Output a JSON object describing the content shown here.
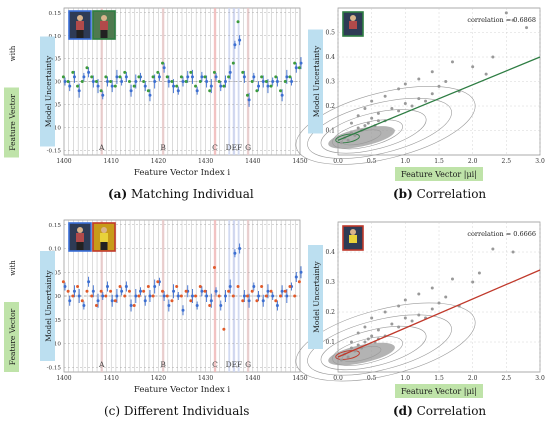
{
  "panels": [
    {
      "id": "a",
      "kind": "scatter_errorbar",
      "caption_letter": "(a)",
      "caption_text": "Matching Individual",
      "ylabel_green": "Feature Vector",
      "ylabel_green_with": "with",
      "ylabel_blue": "Model Uncertainty",
      "xlabel": "Feature Vector Index i",
      "chart_data": {
        "type": "scatter",
        "xlim": [
          1400,
          1450
        ],
        "ylim": [
          -0.16,
          0.16
        ],
        "x_ticks": [
          1400,
          1410,
          1420,
          1430,
          1440,
          1450
        ],
        "y_ticks": [
          -0.15,
          -0.1,
          -0.05,
          0.0,
          0.05,
          0.1,
          0.15
        ],
        "markers": [
          {
            "label": "A",
            "x": 1408
          },
          {
            "label": "B",
            "x": 1421
          },
          {
            "label": "C",
            "x": 1432
          },
          {
            "label": "DEF",
            "x": 1436
          },
          {
            "label": "G",
            "x": 1439
          }
        ],
        "series": [
          {
            "name": "feature",
            "color": "#3c9a3c",
            "x": [
              1400,
              1401,
              1402,
              1403,
              1404,
              1405,
              1406,
              1407,
              1408,
              1409,
              1410,
              1411,
              1412,
              1413,
              1414,
              1415,
              1416,
              1417,
              1418,
              1419,
              1420,
              1421,
              1422,
              1423,
              1424,
              1425,
              1426,
              1427,
              1428,
              1429,
              1430,
              1431,
              1432,
              1433,
              1434,
              1435,
              1436,
              1437,
              1438,
              1439,
              1440,
              1441,
              1442,
              1443,
              1444,
              1445,
              1446,
              1447,
              1448,
              1449,
              1450
            ],
            "y": [
              0.01,
              0.0,
              0.02,
              -0.01,
              0.0,
              0.03,
              0.01,
              0.0,
              -0.02,
              0.01,
              0.0,
              -0.01,
              0.01,
              0.02,
              0.0,
              -0.01,
              0.01,
              0.0,
              -0.02,
              0.01,
              0.02,
              0.04,
              0.01,
              0.0,
              -0.01,
              0.01,
              0.0,
              0.02,
              -0.01,
              0.0,
              0.01,
              -0.02,
              0.02,
              0.0,
              -0.01,
              0.01,
              0.04,
              0.13,
              0.02,
              -0.03,
              0.0,
              -0.02,
              0.01,
              0.0,
              -0.01,
              0.01,
              -0.02,
              0.0,
              0.01,
              0.04,
              0.03
            ]
          },
          {
            "name": "uncertainty",
            "color": "#3d6fd1",
            "x": [
              1400,
              1401,
              1402,
              1403,
              1404,
              1405,
              1406,
              1407,
              1408,
              1409,
              1410,
              1411,
              1412,
              1413,
              1414,
              1415,
              1416,
              1417,
              1418,
              1419,
              1420,
              1421,
              1422,
              1423,
              1424,
              1425,
              1426,
              1427,
              1428,
              1429,
              1430,
              1431,
              1432,
              1433,
              1434,
              1435,
              1436,
              1437,
              1438,
              1439,
              1440,
              1441,
              1442,
              1443,
              1444,
              1445,
              1446,
              1447,
              1448,
              1449,
              1450
            ],
            "y": [
              0.0,
              -0.01,
              0.01,
              -0.02,
              0.01,
              0.02,
              0.0,
              -0.01,
              -0.03,
              0.0,
              -0.01,
              0.01,
              0.0,
              0.01,
              -0.02,
              0.0,
              0.01,
              -0.01,
              -0.03,
              0.0,
              0.01,
              0.03,
              0.0,
              -0.01,
              -0.02,
              0.0,
              0.01,
              0.01,
              -0.02,
              0.01,
              0.0,
              -0.01,
              0.01,
              -0.01,
              0.0,
              0.02,
              0.08,
              0.09,
              0.01,
              -0.04,
              0.01,
              -0.01,
              0.0,
              -0.01,
              0.0,
              0.0,
              -0.03,
              0.01,
              0.0,
              0.03,
              0.04
            ]
          }
        ]
      }
    },
    {
      "id": "b",
      "kind": "scatter_corr",
      "caption_letter": "(b)",
      "caption_text": "Correlation",
      "annotation": "correlation = 0.6868",
      "ylabel": "Model Uncertainty",
      "xlabel": "Feature Vector |μi|",
      "line_color": "#2e7d43",
      "chart_data": {
        "type": "scatter",
        "xlim": [
          0.0,
          3.0
        ],
        "ylim": [
          0.0,
          0.6
        ],
        "x_ticks": [
          0.0,
          0.5,
          1.0,
          1.5,
          2.0,
          2.5,
          3.0
        ],
        "y_ticks": [
          0.1,
          0.2,
          0.3,
          0.4,
          0.5
        ],
        "fit_line": {
          "x": [
            0.0,
            3.0
          ],
          "y": [
            0.06,
            0.4
          ]
        },
        "points": {
          "x": [
            0.05,
            0.1,
            0.15,
            0.2,
            0.25,
            0.3,
            0.35,
            0.4,
            0.45,
            0.5,
            0.55,
            0.6,
            0.7,
            0.8,
            0.9,
            1.0,
            1.1,
            1.2,
            1.3,
            1.4,
            1.5,
            1.6,
            1.8,
            2.0,
            2.2,
            2.5,
            2.6,
            2.8,
            0.3,
            0.5,
            0.7,
            0.9,
            1.2,
            0.4,
            0.6,
            0.2,
            1.0,
            1.4,
            1.7,
            2.3
          ],
          "y": [
            0.05,
            0.07,
            0.06,
            0.09,
            0.08,
            0.11,
            0.1,
            0.12,
            0.13,
            0.15,
            0.12,
            0.17,
            0.14,
            0.19,
            0.18,
            0.21,
            0.2,
            0.23,
            0.22,
            0.25,
            0.28,
            0.3,
            0.26,
            0.36,
            0.33,
            0.58,
            0.55,
            0.52,
            0.16,
            0.22,
            0.24,
            0.27,
            0.31,
            0.19,
            0.14,
            0.13,
            0.29,
            0.34,
            0.38,
            0.4
          ]
        }
      }
    },
    {
      "id": "c",
      "kind": "scatter_errorbar",
      "caption_letter": "(c)",
      "caption_text": "Different Individuals",
      "ylabel_green": "Feature Vector",
      "ylabel_green_with": "with",
      "ylabel_blue": "Model Uncertainty",
      "xlabel": "Feature Vector Index i",
      "chart_data": {
        "type": "scatter",
        "xlim": [
          1400,
          1450
        ],
        "ylim": [
          -0.16,
          0.16
        ],
        "x_ticks": [
          1400,
          1410,
          1420,
          1430,
          1440,
          1450
        ],
        "y_ticks": [
          -0.15,
          -0.1,
          -0.05,
          0.0,
          0.05,
          0.1,
          0.15
        ],
        "markers": [
          {
            "label": "A",
            "x": 1408
          },
          {
            "label": "B",
            "x": 1421
          },
          {
            "label": "C",
            "x": 1432
          },
          {
            "label": "DEF",
            "x": 1436
          },
          {
            "label": "G",
            "x": 1439
          }
        ],
        "series": [
          {
            "name": "feature",
            "color": "#e05a2a",
            "x": [
              1400,
              1401,
              1402,
              1403,
              1404,
              1405,
              1406,
              1407,
              1408,
              1409,
              1410,
              1411,
              1412,
              1413,
              1414,
              1415,
              1416,
              1417,
              1418,
              1419,
              1420,
              1421,
              1422,
              1423,
              1424,
              1425,
              1426,
              1427,
              1428,
              1429,
              1430,
              1431,
              1432,
              1433,
              1434,
              1435,
              1436,
              1437,
              1438,
              1439,
              1440,
              1441,
              1442,
              1443,
              1444,
              1445,
              1446,
              1447,
              1448,
              1449,
              1450
            ],
            "y": [
              0.03,
              0.01,
              0.0,
              0.02,
              -0.01,
              0.01,
              0.0,
              -0.02,
              0.01,
              0.0,
              0.01,
              -0.01,
              0.02,
              0.0,
              0.01,
              -0.02,
              0.0,
              0.01,
              0.02,
              0.0,
              0.03,
              0.01,
              0.0,
              -0.01,
              0.02,
              0.0,
              0.01,
              -0.01,
              0.0,
              0.02,
              0.01,
              -0.02,
              0.06,
              0.0,
              -0.07,
              0.01,
              0.0,
              0.02,
              -0.01,
              0.0,
              0.01,
              -0.01,
              0.02,
              0.0,
              0.01,
              -0.01,
              0.0,
              0.01,
              0.02,
              0.0,
              0.03
            ]
          },
          {
            "name": "uncertainty",
            "color": "#3d6fd1",
            "x": [
              1400,
              1401,
              1402,
              1403,
              1404,
              1405,
              1406,
              1407,
              1408,
              1409,
              1410,
              1411,
              1412,
              1413,
              1414,
              1415,
              1416,
              1417,
              1418,
              1419,
              1420,
              1421,
              1422,
              1423,
              1424,
              1425,
              1426,
              1427,
              1428,
              1429,
              1430,
              1431,
              1432,
              1433,
              1434,
              1435,
              1436,
              1437,
              1438,
              1439,
              1440,
              1441,
              1442,
              1443,
              1444,
              1445,
              1446,
              1447,
              1448,
              1449,
              1450
            ],
            "y": [
              0.02,
              -0.01,
              0.01,
              0.0,
              -0.02,
              0.03,
              0.01,
              -0.01,
              0.0,
              0.02,
              -0.01,
              0.0,
              0.01,
              0.02,
              -0.02,
              0.0,
              0.01,
              -0.01,
              0.0,
              0.02,
              0.03,
              0.0,
              -0.02,
              0.01,
              0.0,
              -0.03,
              0.01,
              0.0,
              -0.02,
              0.01,
              0.0,
              -0.01,
              0.01,
              -0.02,
              0.0,
              0.02,
              0.09,
              0.1,
              0.0,
              -0.01,
              0.02,
              0.0,
              -0.01,
              0.01,
              0.0,
              -0.02,
              0.01,
              0.0,
              0.02,
              0.04,
              0.05
            ]
          }
        ]
      }
    },
    {
      "id": "d",
      "kind": "scatter_corr",
      "caption_letter": "(d)",
      "caption_text": "Correlation",
      "annotation": "correlation = 0.6666",
      "ylabel": "Model Uncertainty",
      "xlabel": "Feature Vector |μi|",
      "line_color": "#c0392b",
      "chart_data": {
        "type": "scatter",
        "xlim": [
          0.0,
          3.0
        ],
        "ylim": [
          0.0,
          0.5
        ],
        "x_ticks": [
          0.0,
          0.5,
          1.0,
          1.5,
          2.0,
          2.5,
          3.0
        ],
        "y_ticks": [
          0.1,
          0.2,
          0.3,
          0.4
        ],
        "fit_line": {
          "x": [
            0.0,
            3.0
          ],
          "y": [
            0.05,
            0.34
          ]
        },
        "points": {
          "x": [
            0.05,
            0.1,
            0.15,
            0.2,
            0.25,
            0.3,
            0.35,
            0.4,
            0.45,
            0.5,
            0.55,
            0.6,
            0.7,
            0.8,
            0.9,
            1.0,
            1.1,
            1.2,
            1.3,
            1.4,
            1.5,
            1.6,
            1.8,
            2.0,
            2.3,
            2.6,
            0.3,
            0.5,
            0.7,
            0.9,
            1.2,
            0.4,
            0.6,
            0.2,
            1.0,
            1.4,
            1.7,
            2.1
          ],
          "y": [
            0.04,
            0.06,
            0.05,
            0.08,
            0.07,
            0.09,
            0.08,
            0.1,
            0.11,
            0.12,
            0.1,
            0.14,
            0.12,
            0.16,
            0.15,
            0.18,
            0.17,
            0.19,
            0.18,
            0.21,
            0.23,
            0.25,
            0.22,
            0.3,
            0.41,
            0.4,
            0.13,
            0.18,
            0.2,
            0.22,
            0.26,
            0.15,
            0.11,
            0.1,
            0.24,
            0.28,
            0.31,
            0.33
          ]
        }
      }
    }
  ]
}
